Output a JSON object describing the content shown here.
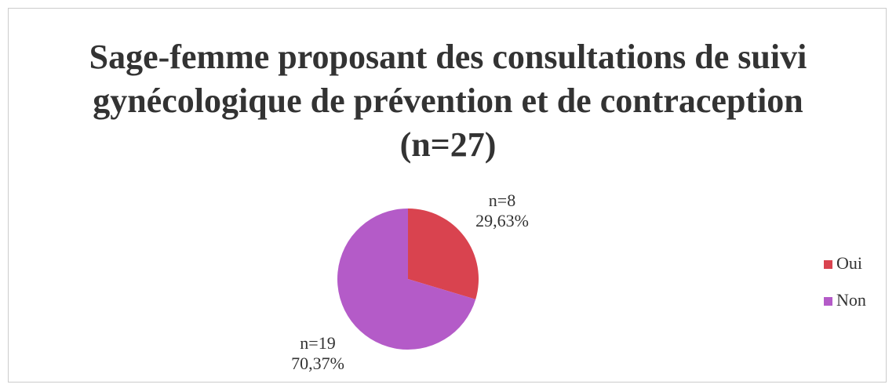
{
  "chart_data": {
    "type": "pie",
    "title": "Sage-femme proposant des consultations de suivi gynécologique de prévention et de contraception (n=27)",
    "categories": [
      "Oui",
      "Non"
    ],
    "values": [
      29.63,
      70.37
    ],
    "value_labels": [
      "29,63%",
      "70,37%"
    ],
    "count_labels": [
      "n=8",
      "n=19"
    ],
    "colors": [
      "#d9434f",
      "#b45bc8"
    ],
    "legend": "right"
  }
}
